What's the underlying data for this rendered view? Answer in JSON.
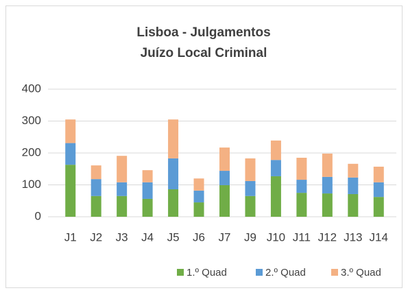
{
  "chart_data": {
    "type": "stacked_bar",
    "title": [
      "Lisboa - Julgamentos",
      "Juízo Local Criminal"
    ],
    "categories": [
      "J1",
      "J2",
      "J3",
      "J4",
      "J5",
      "J6",
      "J7",
      "J9",
      "J10",
      "J11",
      "J12",
      "J13",
      "J14"
    ],
    "series": [
      {
        "name": "1.º Quad",
        "color": "#70ad47",
        "values": [
          163,
          65,
          65,
          56,
          86,
          45,
          99,
          65,
          127,
          75,
          73,
          71,
          62
        ]
      },
      {
        "name": "2.º Quad",
        "color": "#5b9bd5",
        "values": [
          68,
          53,
          43,
          52,
          97,
          37,
          45,
          47,
          51,
          41,
          52,
          52,
          46
        ]
      },
      {
        "name": "3.º Quad",
        "color": "#f4b183",
        "values": [
          74,
          43,
          83,
          38,
          122,
          38,
          73,
          71,
          61,
          69,
          73,
          43,
          49
        ]
      }
    ],
    "ylim": [
      0,
      400
    ],
    "yticks": [
      0,
      100,
      200,
      300,
      400
    ],
    "grid": true,
    "legend": "bottom"
  }
}
